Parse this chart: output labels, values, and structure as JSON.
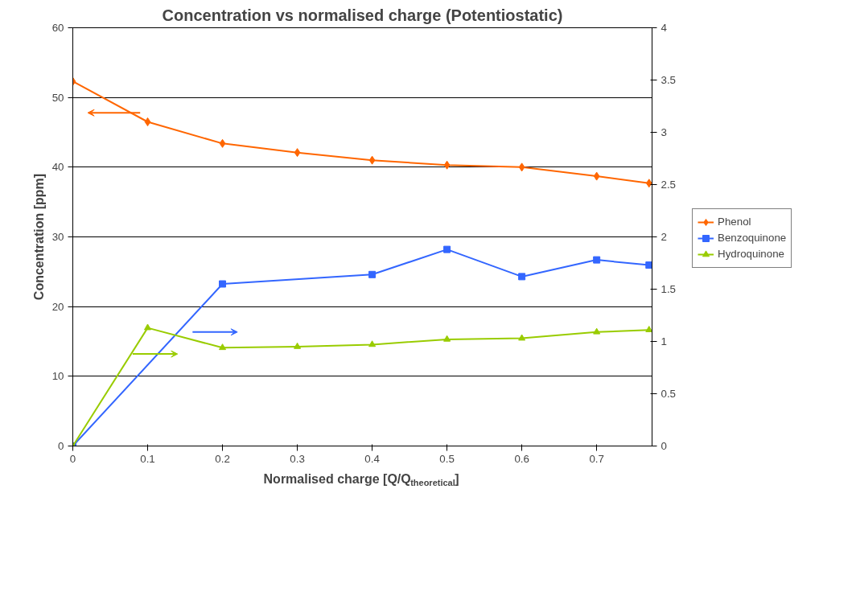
{
  "chart_data": {
    "type": "line",
    "title": "Concentration vs normalised charge (Potentiostatic)",
    "xlabel": "Normalised charge [Q/Q$_{theoretical}$]",
    "ylabel": "Concentration [ppm]",
    "xlim": [
      0,
      0.774
    ],
    "xticks": [
      0,
      0.1,
      0.2,
      0.3,
      0.4,
      0.5,
      0.6,
      0.7
    ],
    "ylim": [
      0,
      60
    ],
    "yticks": [
      0,
      10,
      20,
      30,
      40,
      50,
      60
    ],
    "y2lim": [
      0,
      4
    ],
    "y2ticks": [
      0,
      0.5,
      1,
      1.5,
      2,
      2.5,
      3,
      3.5,
      4
    ],
    "grid": "y",
    "legend": "right",
    "series": [
      {
        "name": "Phenol",
        "color": "#ff6600",
        "marker": "diamond",
        "x": [
          0,
          0.1,
          0.2,
          0.3,
          0.4,
          0.5,
          0.6,
          0.7,
          0.77
        ],
        "values": [
          52.3,
          46.5,
          43.4,
          42.1,
          41.0,
          40.3,
          40.0,
          38.7,
          37.7
        ]
      },
      {
        "name": "Benzoquinone",
        "color": "#3366ff",
        "marker": "square",
        "axis": "y2",
        "x": [
          0,
          0.2,
          0.4,
          0.5,
          0.6,
          0.7,
          0.77
        ],
        "values": [
          0,
          1.55,
          1.64,
          1.88,
          1.62,
          1.78,
          1.73
        ]
      },
      {
        "name": "Hydroquinone",
        "color": "#99cc00",
        "marker": "triangle",
        "axis": "y2",
        "x": [
          0,
          0.1,
          0.2,
          0.3,
          0.4,
          0.5,
          0.6,
          0.7,
          0.77
        ],
        "values": [
          0,
          1.13,
          0.94,
          0.95,
          0.97,
          1.02,
          1.03,
          1.09,
          1.11
        ]
      }
    ]
  }
}
